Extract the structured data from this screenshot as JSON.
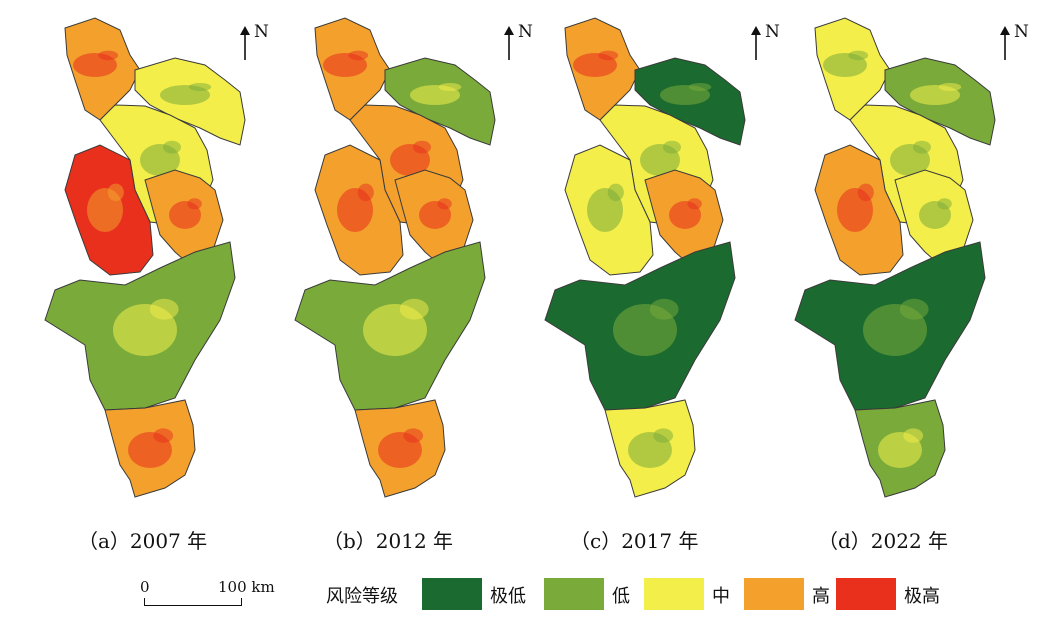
{
  "colors": {
    "very_low": "#1b6b30",
    "low": "#7aab3a",
    "medium": "#f3ee4a",
    "high": "#f3a12c",
    "very_high": "#e8301d"
  },
  "north_label": "N",
  "panels": [
    {
      "caption": "（a）2007 年",
      "mix": [
        "high",
        "medium",
        "medium",
        "very_high",
        "high",
        "low",
        "high"
      ]
    },
    {
      "caption": "（b）2012 年",
      "mix": [
        "high",
        "low",
        "high",
        "high",
        "high",
        "low",
        "high"
      ]
    },
    {
      "caption": "（c）2017 年",
      "mix": [
        "high",
        "very_low",
        "medium",
        "medium",
        "high",
        "very_low",
        "medium"
      ]
    },
    {
      "caption": "（d）2022 年",
      "mix": [
        "medium",
        "low",
        "medium",
        "high",
        "medium",
        "very_low",
        "low"
      ]
    }
  ],
  "scale": {
    "zero": "0",
    "hundred": "100 km"
  },
  "legend": {
    "title": "风险等级",
    "items": [
      {
        "label": "极低",
        "color_key": "very_low"
      },
      {
        "label": "低",
        "color_key": "low"
      },
      {
        "label": "中",
        "color_key": "medium"
      },
      {
        "label": "高",
        "color_key": "high"
      },
      {
        "label": "极高",
        "color_key": "very_high"
      }
    ]
  }
}
